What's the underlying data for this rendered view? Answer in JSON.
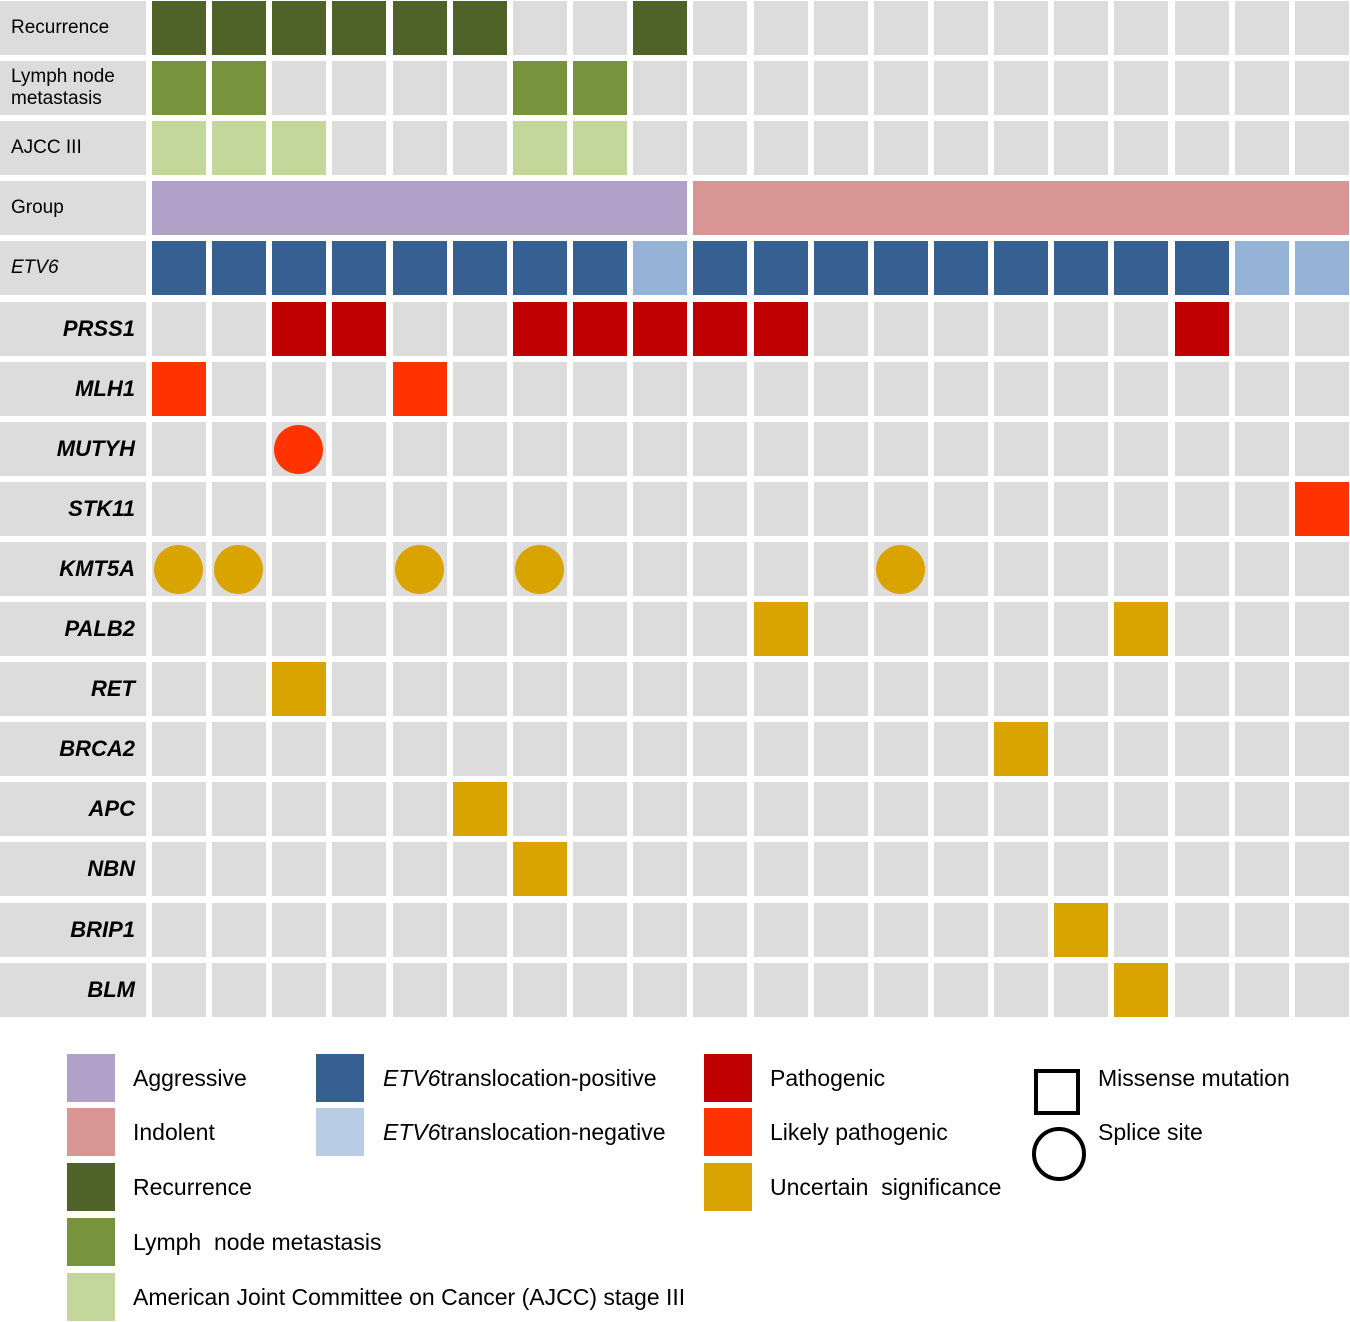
{
  "chart_data": {
    "type": "oncoprint",
    "n_samples": 20,
    "feature_rows": [
      {
        "label": "Recurrence",
        "values": [
          1,
          1,
          1,
          1,
          1,
          1,
          0,
          0,
          1,
          0,
          0,
          0,
          0,
          0,
          0,
          0,
          0,
          0,
          0,
          0
        ]
      },
      {
        "label": "Lymph node\nmetastasis",
        "values": [
          1,
          1,
          0,
          0,
          0,
          0,
          1,
          1,
          0,
          0,
          0,
          0,
          0,
          0,
          0,
          0,
          0,
          0,
          0,
          0
        ]
      },
      {
        "label": "AJCC III",
        "values": [
          1,
          1,
          1,
          0,
          0,
          0,
          1,
          1,
          0,
          0,
          0,
          0,
          0,
          0,
          0,
          0,
          0,
          0,
          0,
          0
        ]
      }
    ],
    "group_row": {
      "label": "Group",
      "groups": [
        {
          "name": "Aggressive",
          "samples": 9
        },
        {
          "name": "Indolent",
          "samples": 11
        }
      ]
    },
    "etv6_row": {
      "label": "ETV6",
      "values": [
        "pos",
        "pos",
        "pos",
        "pos",
        "pos",
        "pos",
        "pos",
        "pos",
        "neg",
        "pos",
        "pos",
        "pos",
        "pos",
        "pos",
        "pos",
        "pos",
        "pos",
        "pos",
        "neg",
        "neg"
      ]
    },
    "genes": [
      {
        "label": "PRSS1",
        "mutations": [
          {
            "sample": 2,
            "class": "pathogenic",
            "type": "missense"
          },
          {
            "sample": 3,
            "class": "pathogenic",
            "type": "missense"
          },
          {
            "sample": 6,
            "class": "pathogenic",
            "type": "missense"
          },
          {
            "sample": 7,
            "class": "pathogenic",
            "type": "missense"
          },
          {
            "sample": 8,
            "class": "pathogenic",
            "type": "missense"
          },
          {
            "sample": 9,
            "class": "pathogenic",
            "type": "missense"
          },
          {
            "sample": 10,
            "class": "pathogenic",
            "type": "missense"
          },
          {
            "sample": 17,
            "class": "pathogenic",
            "type": "missense"
          }
        ]
      },
      {
        "label": "MLH1",
        "mutations": [
          {
            "sample": 0,
            "class": "likely",
            "type": "missense"
          },
          {
            "sample": 4,
            "class": "likely",
            "type": "missense"
          }
        ]
      },
      {
        "label": "MUTYH",
        "mutations": [
          {
            "sample": 2,
            "class": "likely",
            "type": "splice"
          }
        ]
      },
      {
        "label": "STK11",
        "mutations": [
          {
            "sample": 19,
            "class": "likely",
            "type": "missense"
          }
        ]
      },
      {
        "label": "KMT5A",
        "mutations": [
          {
            "sample": 0,
            "class": "uncertain",
            "type": "splice"
          },
          {
            "sample": 1,
            "class": "uncertain",
            "type": "splice"
          },
          {
            "sample": 4,
            "class": "uncertain",
            "type": "splice"
          },
          {
            "sample": 6,
            "class": "uncertain",
            "type": "splice"
          },
          {
            "sample": 12,
            "class": "uncertain",
            "type": "splice"
          }
        ]
      },
      {
        "label": "PALB2",
        "mutations": [
          {
            "sample": 10,
            "class": "uncertain",
            "type": "missense"
          },
          {
            "sample": 16,
            "class": "uncertain",
            "type": "missense"
          }
        ]
      },
      {
        "label": "RET",
        "mutations": [
          {
            "sample": 2,
            "class": "uncertain",
            "type": "missense"
          }
        ]
      },
      {
        "label": "BRCA2",
        "mutations": [
          {
            "sample": 14,
            "class": "uncertain",
            "type": "missense"
          }
        ]
      },
      {
        "label": "APC",
        "mutations": [
          {
            "sample": 5,
            "class": "uncertain",
            "type": "missense"
          }
        ]
      },
      {
        "label": "NBN",
        "mutations": [
          {
            "sample": 6,
            "class": "uncertain",
            "type": "missense"
          }
        ]
      },
      {
        "label": "BRIP1",
        "mutations": [
          {
            "sample": 15,
            "class": "uncertain",
            "type": "missense"
          }
        ]
      },
      {
        "label": "BLM",
        "mutations": [
          {
            "sample": 16,
            "class": "uncertain",
            "type": "missense"
          }
        ]
      }
    ],
    "colors": {
      "background_cell": "#dcdcdc",
      "recurrence": "#4f6228",
      "lymph_node": "#77933c",
      "ajcc3": "#c4d79b",
      "aggressive": "#b1a0c7",
      "indolent": "#da9694",
      "etv6_pos": "#366092",
      "etv6_neg": "#95b3d7",
      "etv6_neg_legend": "#b8cce4",
      "pathogenic": "#c00000",
      "likely": "#ff3300",
      "uncertain": "#d9a400"
    }
  },
  "legend": {
    "col1": [
      {
        "label": "Aggressive",
        "color_key": "aggressive"
      },
      {
        "label": "Indolent",
        "color_key": "indolent"
      },
      {
        "label": "Recurrence",
        "color_key": "recurrence"
      },
      {
        "label": "Lymph  node metastasis",
        "color_key": "lymph_node"
      },
      {
        "label": "American Joint Committee on Cancer (AJCC) stage III",
        "color_key": "ajcc3"
      }
    ],
    "col2": [
      {
        "italic": "ETV6",
        "label": "translocation-positive",
        "color_key": "etv6_pos"
      },
      {
        "italic": "ETV6",
        "label": "translocation-negative",
        "color_key": "etv6_neg_legend"
      }
    ],
    "col3": [
      {
        "label": "Pathogenic",
        "color_key": "pathogenic"
      },
      {
        "label": "Likely pathogenic",
        "color_key": "likely"
      },
      {
        "label": "Uncertain  significance",
        "color_key": "uncertain"
      }
    ],
    "col4": [
      {
        "label": "Missense mutation",
        "shape": "square"
      },
      {
        "label": "Splice site",
        "shape": "circle"
      }
    ]
  }
}
